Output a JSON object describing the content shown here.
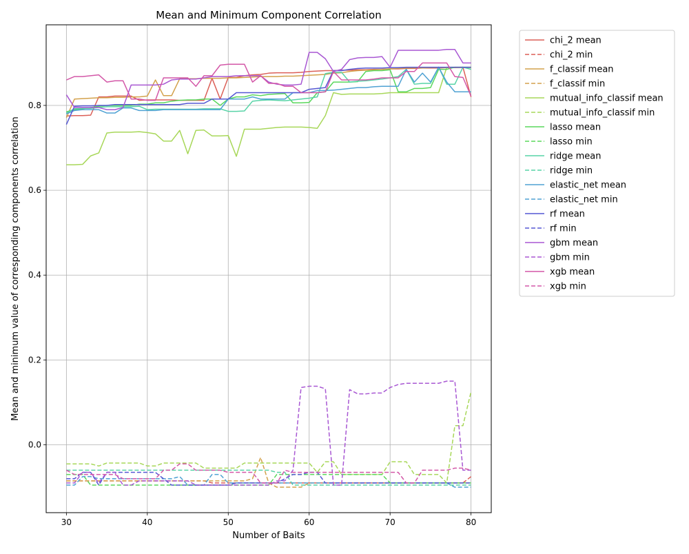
{
  "chart_data": {
    "type": "line",
    "title": "Mean and Minimum Component Correlation",
    "xlabel": "Number of Baits",
    "ylabel": "Mean and minimum value of corresponding components correlation",
    "xlim": [
      27.5,
      82.5
    ],
    "ylim": [
      -0.16,
      0.99
    ],
    "xticks": [
      30,
      40,
      50,
      60,
      70,
      80
    ],
    "yticks": [
      0.0,
      0.2,
      0.4,
      0.6,
      0.8
    ],
    "grid": true,
    "legend_position": "outside-right",
    "x": [
      30,
      31,
      32,
      33,
      34,
      35,
      36,
      37,
      38,
      39,
      40,
      41,
      42,
      43,
      44,
      45,
      46,
      47,
      48,
      49,
      50,
      51,
      52,
      53,
      54,
      55,
      56,
      57,
      58,
      59,
      60,
      61,
      62,
      63,
      64,
      65,
      66,
      67,
      68,
      69,
      70,
      71,
      72,
      73,
      74,
      75,
      76,
      77,
      78,
      79,
      80
    ],
    "series": [
      {
        "name": "chi_2 mean",
        "color": "#db5f57",
        "dash": false,
        "values": [
          0.775,
          0.776,
          0.776,
          0.777,
          0.82,
          0.82,
          0.822,
          0.822,
          0.822,
          0.812,
          0.813,
          0.813,
          0.813,
          0.813,
          0.812,
          0.812,
          0.812,
          0.812,
          0.864,
          0.815,
          0.866,
          0.866,
          0.87,
          0.872,
          0.873,
          0.876,
          0.877,
          0.877,
          0.877,
          0.878,
          0.88,
          0.881,
          0.882,
          0.882,
          0.883,
          0.883,
          0.884,
          0.884,
          0.885,
          0.885,
          0.886,
          0.886,
          0.887,
          0.887,
          0.888,
          0.888,
          0.888,
          0.889,
          0.889,
          0.89,
          0.82
        ]
      },
      {
        "name": "chi_2 min",
        "color": "#db5f57",
        "dash": true,
        "values": [
          -0.085,
          -0.085,
          -0.085,
          -0.085,
          -0.085,
          -0.085,
          -0.085,
          -0.085,
          -0.085,
          -0.085,
          -0.085,
          -0.085,
          -0.085,
          -0.085,
          -0.085,
          -0.085,
          -0.085,
          -0.085,
          -0.09,
          -0.09,
          -0.09,
          -0.09,
          -0.09,
          -0.09,
          -0.09,
          -0.09,
          -0.09,
          -0.09,
          -0.09,
          -0.09,
          -0.09,
          -0.09,
          -0.09,
          -0.09,
          -0.09,
          -0.09,
          -0.09,
          -0.09,
          -0.09,
          -0.09,
          -0.09,
          -0.09,
          -0.09,
          -0.09,
          -0.09,
          -0.09,
          -0.09,
          -0.09,
          -0.09,
          -0.09,
          -0.075
        ]
      },
      {
        "name": "f_classif mean",
        "color": "#d3a14b",
        "dash": false,
        "values": [
          0.771,
          0.815,
          0.816,
          0.817,
          0.818,
          0.818,
          0.819,
          0.819,
          0.82,
          0.82,
          0.822,
          0.86,
          0.823,
          0.823,
          0.863,
          0.863,
          0.863,
          0.864,
          0.864,
          0.864,
          0.865,
          0.865,
          0.866,
          0.867,
          0.868,
          0.868,
          0.868,
          0.869,
          0.869,
          0.87,
          0.871,
          0.872,
          0.873,
          0.876,
          0.877,
          0.88,
          0.882,
          0.883,
          0.884,
          0.885,
          0.886,
          0.887,
          0.888,
          0.888,
          0.888,
          0.889,
          0.889,
          0.889,
          0.889,
          0.889,
          0.889
        ]
      },
      {
        "name": "f_classif min",
        "color": "#d3a14b",
        "dash": true,
        "values": [
          -0.085,
          -0.085,
          -0.085,
          -0.085,
          -0.085,
          -0.085,
          -0.085,
          -0.085,
          -0.085,
          -0.085,
          -0.085,
          -0.085,
          -0.085,
          -0.085,
          -0.085,
          -0.085,
          -0.085,
          -0.085,
          -0.085,
          -0.085,
          -0.085,
          -0.085,
          -0.085,
          -0.08,
          -0.03,
          -0.09,
          -0.1,
          -0.1,
          -0.1,
          -0.1,
          -0.09,
          -0.09,
          -0.09,
          -0.09,
          -0.09,
          -0.09,
          -0.09,
          -0.09,
          -0.09,
          -0.09,
          -0.09,
          -0.09,
          -0.09,
          -0.09,
          -0.09,
          -0.09,
          -0.09,
          -0.09,
          -0.09,
          -0.09,
          -0.09
        ]
      },
      {
        "name": "mutual_info_classif mean",
        "color": "#a7d758",
        "dash": false,
        "values": [
          0.66,
          0.66,
          0.661,
          0.681,
          0.688,
          0.735,
          0.737,
          0.737,
          0.737,
          0.738,
          0.736,
          0.733,
          0.716,
          0.716,
          0.741,
          0.686,
          0.741,
          0.742,
          0.728,
          0.728,
          0.729,
          0.68,
          0.744,
          0.744,
          0.744,
          0.746,
          0.748,
          0.749,
          0.749,
          0.749,
          0.748,
          0.746,
          0.776,
          0.83,
          0.826,
          0.827,
          0.827,
          0.827,
          0.827,
          0.828,
          0.83,
          0.83,
          0.83,
          0.83,
          0.83,
          0.83,
          0.83,
          0.89,
          0.89,
          0.89,
          0.89
        ]
      },
      {
        "name": "mutual_info_classif min",
        "color": "#a7d758",
        "dash": true,
        "values": [
          -0.045,
          -0.045,
          -0.045,
          -0.045,
          -0.05,
          -0.043,
          -0.043,
          -0.043,
          -0.043,
          -0.043,
          -0.05,
          -0.05,
          -0.043,
          -0.043,
          -0.043,
          -0.043,
          -0.043,
          -0.055,
          -0.055,
          -0.055,
          -0.055,
          -0.055,
          -0.043,
          -0.043,
          -0.043,
          -0.043,
          -0.043,
          -0.043,
          -0.043,
          -0.043,
          -0.043,
          -0.065,
          -0.04,
          -0.04,
          -0.07,
          -0.07,
          -0.07,
          -0.07,
          -0.07,
          -0.07,
          -0.04,
          -0.04,
          -0.04,
          -0.07,
          -0.07,
          -0.07,
          -0.07,
          -0.09,
          0.045,
          0.045,
          0.125
        ]
      },
      {
        "name": "lasso mean",
        "color": "#59d75b",
        "dash": false,
        "values": [
          0.785,
          0.79,
          0.792,
          0.795,
          0.798,
          0.8,
          0.8,
          0.8,
          0.8,
          0.803,
          0.803,
          0.806,
          0.806,
          0.81,
          0.812,
          0.813,
          0.813,
          0.815,
          0.815,
          0.8,
          0.815,
          0.82,
          0.82,
          0.825,
          0.823,
          0.826,
          0.827,
          0.828,
          0.806,
          0.806,
          0.807,
          0.83,
          0.832,
          0.855,
          0.855,
          0.855,
          0.856,
          0.88,
          0.882,
          0.882,
          0.884,
          0.832,
          0.832,
          0.84,
          0.84,
          0.842,
          0.885,
          0.885,
          0.89,
          0.89,
          0.89
        ]
      },
      {
        "name": "lasso min",
        "color": "#59d75b",
        "dash": true,
        "values": [
          -0.07,
          -0.07,
          -0.07,
          -0.095,
          -0.095,
          -0.095,
          -0.095,
          -0.095,
          -0.095,
          -0.095,
          -0.095,
          -0.095,
          -0.095,
          -0.095,
          -0.095,
          -0.095,
          -0.095,
          -0.095,
          -0.095,
          -0.095,
          -0.095,
          -0.095,
          -0.095,
          -0.095,
          -0.095,
          -0.095,
          -0.07,
          -0.07,
          -0.07,
          -0.07,
          -0.07,
          -0.07,
          -0.07,
          -0.07,
          -0.07,
          -0.07,
          -0.07,
          -0.07,
          -0.07,
          -0.07,
          -0.09,
          -0.09,
          -0.09,
          -0.09,
          -0.09,
          -0.09,
          -0.09,
          -0.09,
          -0.09,
          -0.09,
          -0.09
        ]
      },
      {
        "name": "ridge mean",
        "color": "#57d3a6",
        "dash": false,
        "values": [
          0.782,
          0.792,
          0.793,
          0.793,
          0.795,
          0.797,
          0.797,
          0.797,
          0.797,
          0.798,
          0.79,
          0.791,
          0.791,
          0.791,
          0.791,
          0.791,
          0.791,
          0.792,
          0.792,
          0.792,
          0.786,
          0.786,
          0.787,
          0.81,
          0.812,
          0.813,
          0.812,
          0.811,
          0.813,
          0.815,
          0.817,
          0.82,
          0.875,
          0.878,
          0.878,
          0.855,
          0.857,
          0.858,
          0.86,
          0.862,
          0.865,
          0.868,
          0.885,
          0.85,
          0.852,
          0.852,
          0.89,
          0.85,
          0.85,
          0.89,
          0.885
        ]
      },
      {
        "name": "ridge min",
        "color": "#57d3a6",
        "dash": true,
        "values": [
          -0.06,
          -0.06,
          -0.06,
          -0.06,
          -0.06,
          -0.06,
          -0.06,
          -0.06,
          -0.06,
          -0.06,
          -0.06,
          -0.06,
          -0.06,
          -0.06,
          -0.06,
          -0.06,
          -0.06,
          -0.06,
          -0.06,
          -0.06,
          -0.06,
          -0.06,
          -0.06,
          -0.06,
          -0.06,
          -0.06,
          -0.065,
          -0.065,
          -0.095,
          -0.095,
          -0.095,
          -0.095,
          -0.095,
          -0.095,
          -0.095,
          -0.095,
          -0.095,
          -0.095,
          -0.095,
          -0.095,
          -0.095,
          -0.095,
          -0.095,
          -0.095,
          -0.095,
          -0.095,
          -0.095,
          -0.095,
          -0.095,
          -0.095,
          -0.095
        ]
      },
      {
        "name": "elastic_net mean",
        "color": "#4ea1d3",
        "dash": false,
        "values": [
          0.78,
          0.788,
          0.79,
          0.79,
          0.79,
          0.782,
          0.782,
          0.794,
          0.794,
          0.788,
          0.788,
          0.788,
          0.79,
          0.79,
          0.79,
          0.79,
          0.79,
          0.79,
          0.79,
          0.79,
          0.815,
          0.815,
          0.815,
          0.82,
          0.815,
          0.815,
          0.815,
          0.815,
          0.83,
          0.83,
          0.83,
          0.835,
          0.835,
          0.836,
          0.838,
          0.84,
          0.842,
          0.842,
          0.844,
          0.845,
          0.845,
          0.845,
          0.885,
          0.855,
          0.876,
          0.855,
          0.89,
          0.855,
          0.832,
          0.832,
          0.832
        ]
      },
      {
        "name": "elastic_net min",
        "color": "#4ea1d3",
        "dash": true,
        "values": [
          -0.095,
          -0.095,
          -0.075,
          -0.075,
          -0.08,
          -0.08,
          -0.08,
          -0.08,
          -0.08,
          -0.08,
          -0.08,
          -0.08,
          -0.08,
          -0.08,
          -0.075,
          -0.095,
          -0.095,
          -0.095,
          -0.07,
          -0.07,
          -0.09,
          -0.09,
          -0.09,
          -0.09,
          -0.09,
          -0.09,
          -0.09,
          -0.09,
          -0.09,
          -0.09,
          -0.09,
          -0.09,
          -0.09,
          -0.09,
          -0.09,
          -0.09,
          -0.09,
          -0.09,
          -0.09,
          -0.09,
          -0.09,
          -0.09,
          -0.09,
          -0.09,
          -0.09,
          -0.09,
          -0.09,
          -0.09,
          -0.1,
          -0.1,
          -0.1
        ]
      },
      {
        "name": "rf mean",
        "color": "#5457d3",
        "dash": false,
        "values": [
          0.755,
          0.798,
          0.799,
          0.799,
          0.8,
          0.8,
          0.802,
          0.802,
          0.802,
          0.802,
          0.802,
          0.802,
          0.802,
          0.802,
          0.802,
          0.805,
          0.805,
          0.805,
          0.815,
          0.815,
          0.815,
          0.83,
          0.83,
          0.83,
          0.83,
          0.83,
          0.83,
          0.83,
          0.83,
          0.83,
          0.838,
          0.84,
          0.842,
          0.882,
          0.882,
          0.885,
          0.887,
          0.888,
          0.888,
          0.888,
          0.889,
          0.889,
          0.89,
          0.89,
          0.89,
          0.89,
          0.89,
          0.89,
          0.89,
          0.89,
          0.89
        ]
      },
      {
        "name": "rf min",
        "color": "#5457d3",
        "dash": true,
        "values": [
          -0.08,
          -0.08,
          -0.065,
          -0.065,
          -0.095,
          -0.065,
          -0.065,
          -0.065,
          -0.065,
          -0.065,
          -0.065,
          -0.065,
          -0.08,
          -0.095,
          -0.095,
          -0.095,
          -0.095,
          -0.095,
          -0.095,
          -0.095,
          -0.095,
          -0.09,
          -0.09,
          -0.09,
          -0.09,
          -0.09,
          -0.09,
          -0.08,
          -0.07,
          -0.07,
          -0.065,
          -0.065,
          -0.09,
          -0.09,
          -0.09,
          -0.09,
          -0.09,
          -0.09,
          -0.09,
          -0.09,
          -0.09,
          -0.09,
          -0.09,
          -0.09,
          -0.09,
          -0.09,
          -0.09,
          -0.09,
          -0.09,
          -0.09,
          -0.09
        ]
      },
      {
        "name": "gbm mean",
        "color": "#a857d3",
        "dash": false,
        "values": [
          0.825,
          0.795,
          0.795,
          0.795,
          0.795,
          0.79,
          0.79,
          0.795,
          0.848,
          0.848,
          0.848,
          0.848,
          0.85,
          0.86,
          0.862,
          0.862,
          0.862,
          0.865,
          0.868,
          0.868,
          0.868,
          0.87,
          0.87,
          0.87,
          0.87,
          0.855,
          0.85,
          0.848,
          0.848,
          0.85,
          0.925,
          0.925,
          0.91,
          0.88,
          0.885,
          0.908,
          0.912,
          0.913,
          0.913,
          0.915,
          0.89,
          0.93,
          0.93,
          0.93,
          0.93,
          0.93,
          0.93,
          0.932,
          0.932,
          0.9,
          0.9
        ]
      },
      {
        "name": "gbm min",
        "color": "#a857d3",
        "dash": true,
        "values": [
          -0.09,
          -0.09,
          -0.065,
          -0.065,
          -0.09,
          -0.065,
          -0.065,
          -0.095,
          -0.095,
          -0.085,
          -0.085,
          -0.085,
          -0.085,
          -0.085,
          -0.085,
          -0.085,
          -0.095,
          -0.095,
          -0.095,
          -0.095,
          -0.095,
          -0.095,
          -0.095,
          -0.095,
          -0.095,
          -0.095,
          -0.085,
          -0.085,
          -0.06,
          0.135,
          0.138,
          0.138,
          0.132,
          -0.095,
          -0.095,
          0.13,
          0.12,
          0.12,
          0.122,
          0.122,
          0.135,
          0.142,
          0.145,
          0.145,
          0.145,
          0.145,
          0.145,
          0.15,
          0.15,
          -0.06,
          -0.06
        ]
      },
      {
        "name": "xgb mean",
        "color": "#d357a7",
        "dash": false,
        "values": [
          0.86,
          0.868,
          0.868,
          0.87,
          0.872,
          0.855,
          0.858,
          0.858,
          0.815,
          0.815,
          0.812,
          0.812,
          0.865,
          0.865,
          0.865,
          0.865,
          0.845,
          0.87,
          0.87,
          0.895,
          0.897,
          0.897,
          0.897,
          0.855,
          0.87,
          0.852,
          0.852,
          0.845,
          0.845,
          0.83,
          0.83,
          0.83,
          0.832,
          0.88,
          0.86,
          0.86,
          0.86,
          0.86,
          0.862,
          0.865,
          0.865,
          0.865,
          0.88,
          0.88,
          0.9,
          0.9,
          0.9,
          0.9,
          0.868,
          0.866,
          0.822
        ]
      },
      {
        "name": "xgb min",
        "color": "#d357a7",
        "dash": true,
        "values": [
          -0.06,
          -0.07,
          -0.07,
          -0.07,
          -0.07,
          -0.07,
          -0.07,
          -0.08,
          -0.08,
          -0.08,
          -0.08,
          -0.08,
          -0.06,
          -0.06,
          -0.045,
          -0.045,
          -0.06,
          -0.06,
          -0.06,
          -0.06,
          -0.065,
          -0.065,
          -0.065,
          -0.065,
          -0.09,
          -0.09,
          -0.09,
          -0.06,
          -0.065,
          -0.065,
          -0.065,
          -0.065,
          -0.065,
          -0.065,
          -0.065,
          -0.065,
          -0.065,
          -0.065,
          -0.065,
          -0.065,
          -0.065,
          -0.065,
          -0.09,
          -0.09,
          -0.06,
          -0.06,
          -0.06,
          -0.06,
          -0.055,
          -0.055,
          -0.06
        ]
      }
    ]
  }
}
